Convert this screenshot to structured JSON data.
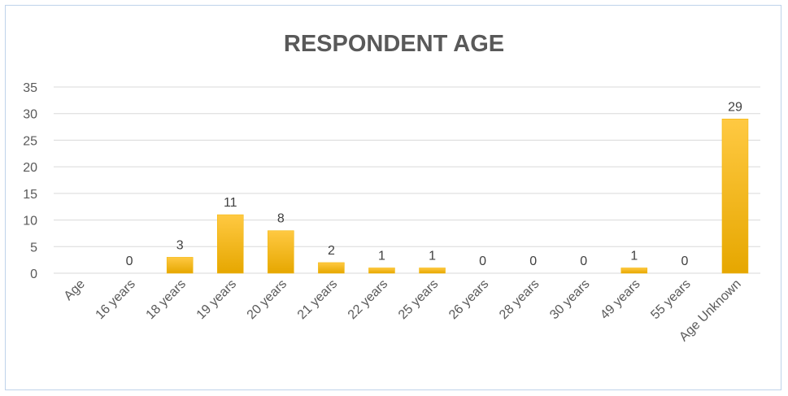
{
  "chart_data": {
    "type": "bar",
    "title": "RESPONDENT AGE",
    "categories": [
      "Age",
      "16 years",
      "18 years",
      "19 years",
      "20 years",
      "21 years",
      "22 years",
      "25 years",
      "26 years",
      "28 years",
      "30 years",
      "49 years",
      "55 years",
      "Age Unknown"
    ],
    "values": [
      null,
      0,
      3,
      11,
      8,
      2,
      1,
      1,
      0,
      0,
      0,
      1,
      0,
      29
    ],
    "data_labels": [
      "",
      "0",
      "3",
      "11",
      "8",
      "2",
      "1",
      "1",
      "0",
      "0",
      "0",
      "1",
      "0",
      "29"
    ],
    "ylim": [
      0,
      35
    ],
    "yticks": [
      "0",
      "5",
      "10",
      "15",
      "20",
      "25",
      "30",
      "35"
    ],
    "grid": true,
    "legend": "none",
    "colors": {
      "bar_top": "#ffc942",
      "bar_bottom": "#e6a700",
      "grid": "#d9d9d9",
      "frame": "#bfd3ea"
    }
  }
}
